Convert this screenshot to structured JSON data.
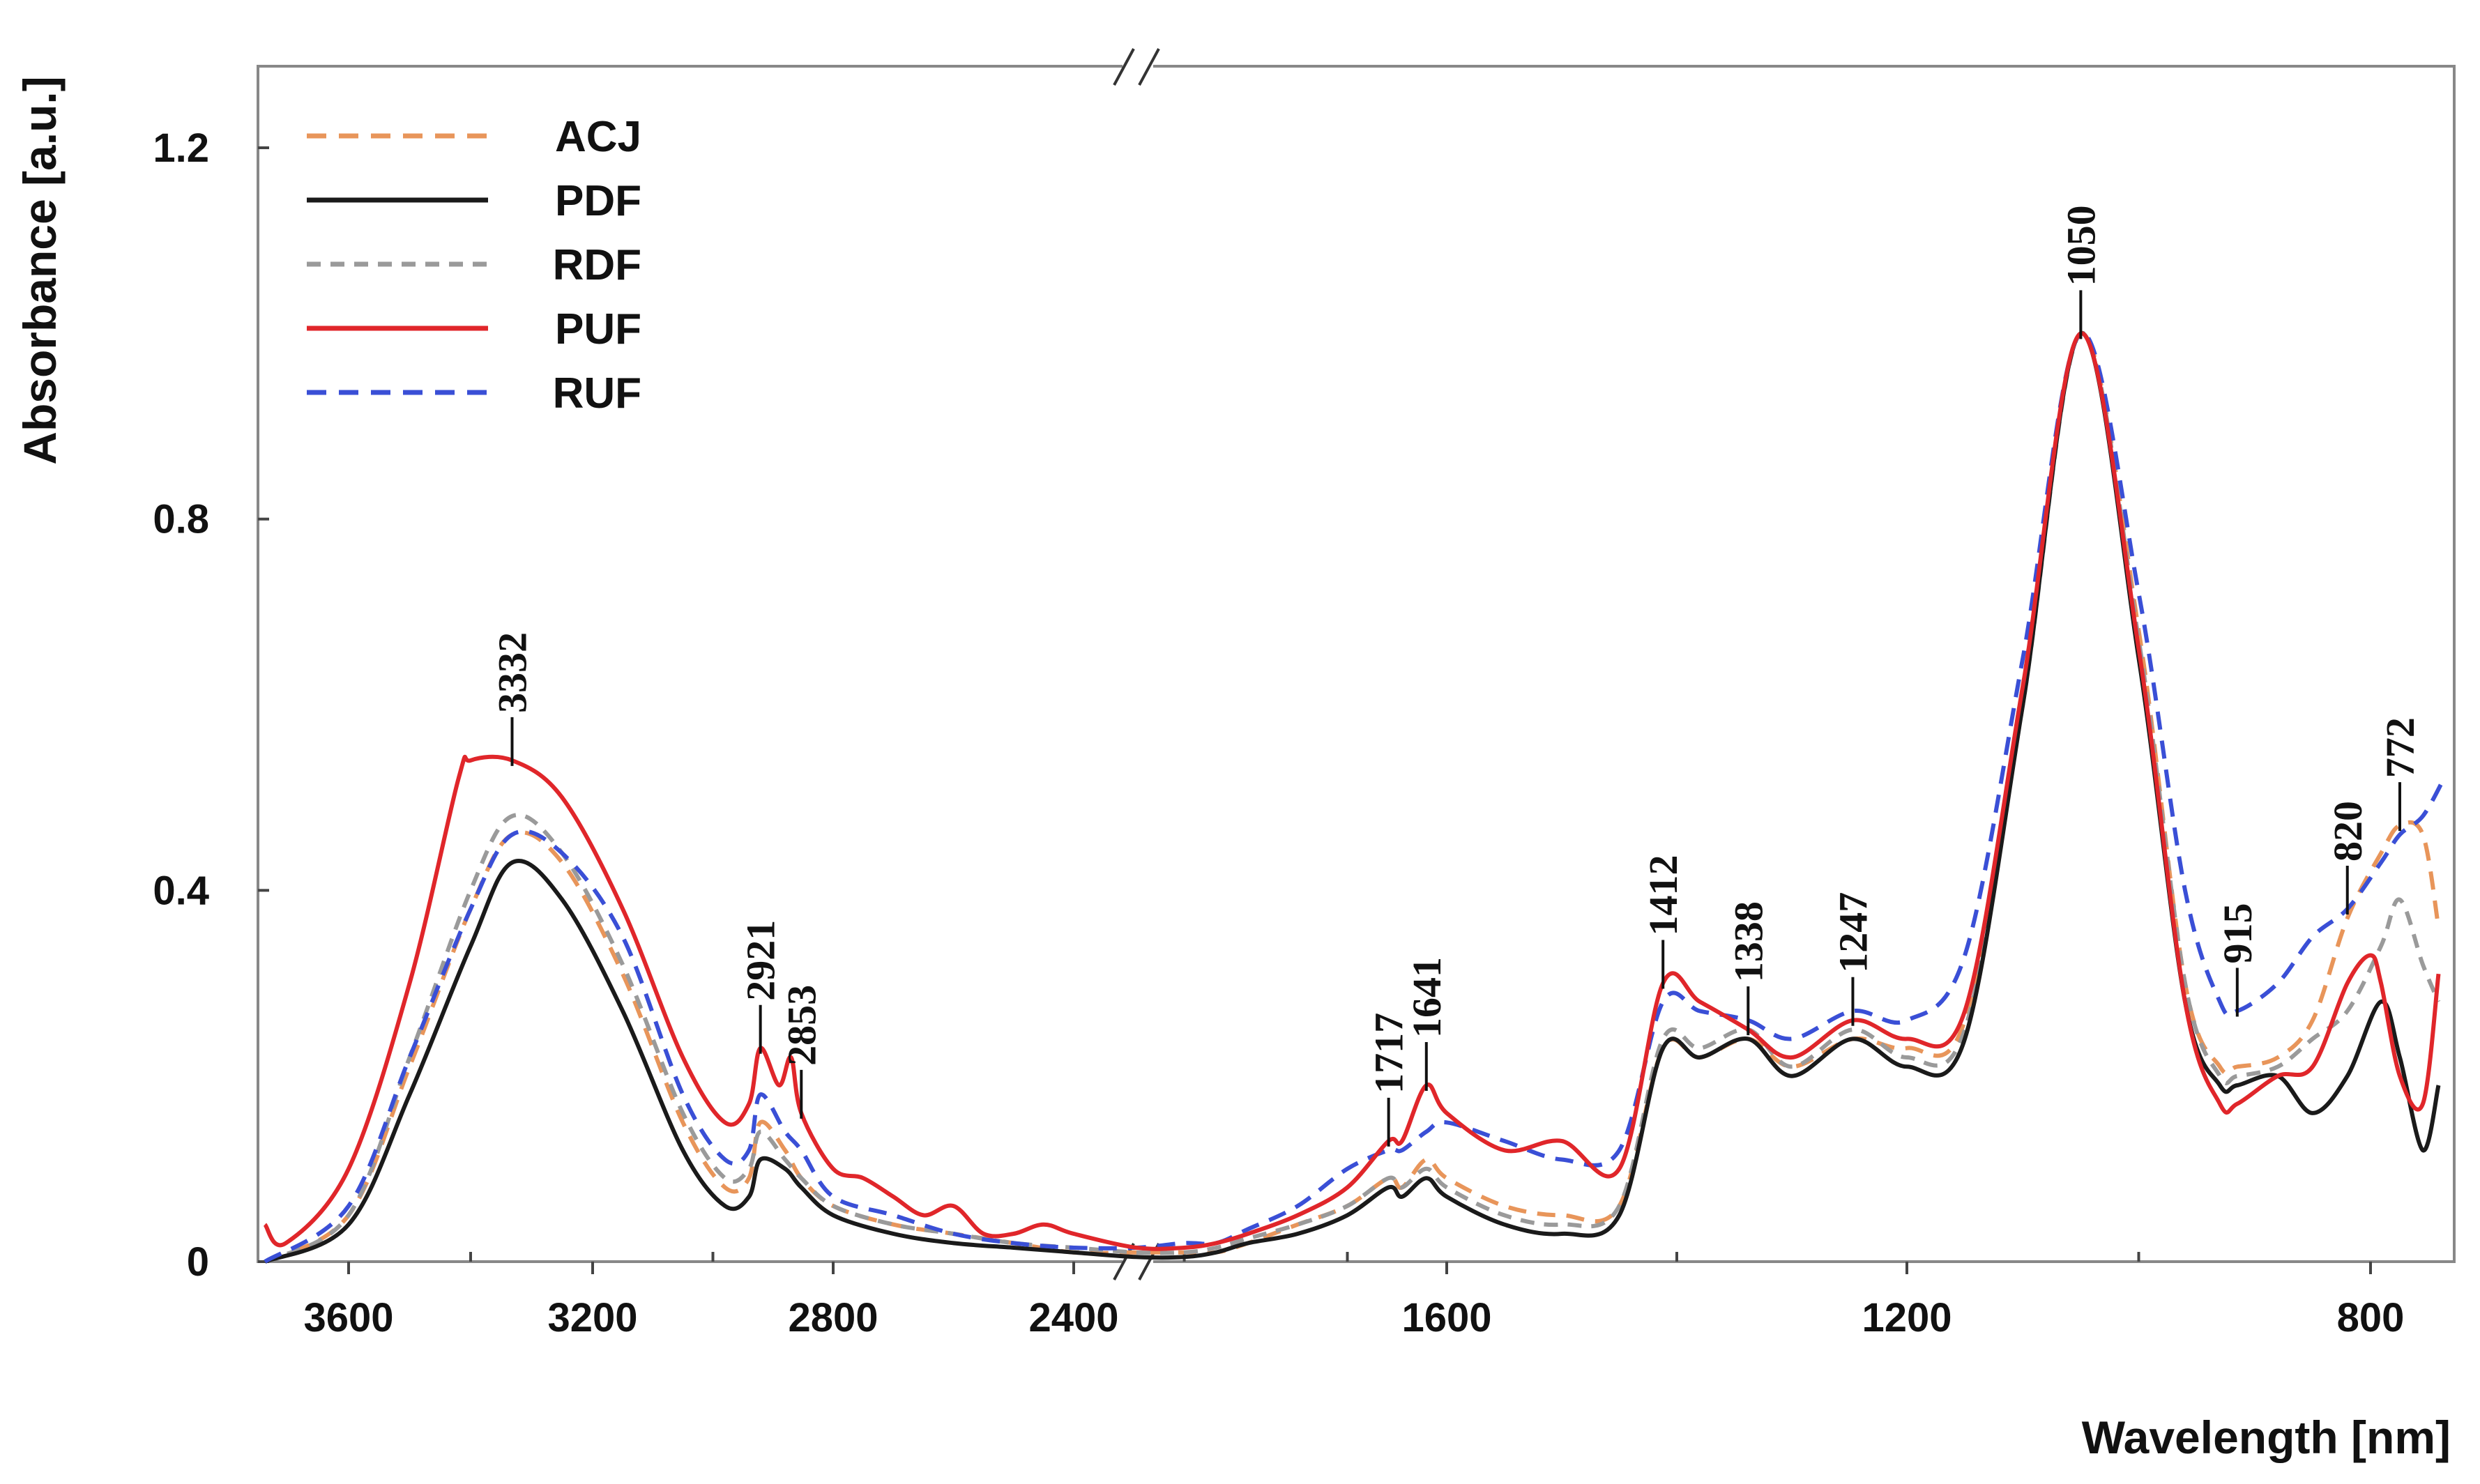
{
  "chart_data": {
    "type": "line",
    "title": "",
    "xlabel": "Wavelength [nm]",
    "ylabel": "Absorbance [a.u.]",
    "xlim": [
      3730,
      720
    ],
    "ylim": [
      0,
      1.3
    ],
    "x_axis_break_at": 2350,
    "x_ticks": [
      3600,
      3200,
      2800,
      2400,
      1600,
      1200,
      800
    ],
    "y_ticks": [
      0,
      0.4,
      0.8,
      1.2
    ],
    "x_tick_labels": [
      "3600",
      "3200",
      "2800",
      "2400",
      "1600",
      "1200",
      "800"
    ],
    "y_tick_labels": [
      "0",
      "0.4",
      "0.8",
      "1.2"
    ],
    "legend_position": "top-left",
    "series": [
      {
        "name": "ACJ",
        "color": "#e8955a",
        "style": "dashed",
        "points": [
          [
            3720,
            0.0
          ],
          [
            3600,
            0.05
          ],
          [
            3500,
            0.21
          ],
          [
            3400,
            0.38
          ],
          [
            3332,
            0.46
          ],
          [
            3250,
            0.43
          ],
          [
            3150,
            0.31
          ],
          [
            3050,
            0.15
          ],
          [
            2980,
            0.08
          ],
          [
            2940,
            0.09
          ],
          [
            2921,
            0.15
          ],
          [
            2880,
            0.12
          ],
          [
            2853,
            0.09
          ],
          [
            2800,
            0.06
          ],
          [
            2700,
            0.04
          ],
          [
            2600,
            0.03
          ],
          [
            2500,
            0.02
          ],
          [
            2400,
            0.01
          ],
          [
            2350,
            0.01
          ],
          [
            2200,
            0.01
          ],
          [
            2100,
            0.01
          ],
          [
            2000,
            0.02
          ],
          [
            1900,
            0.04
          ],
          [
            1800,
            0.06
          ],
          [
            1717,
            0.09
          ],
          [
            1690,
            0.08
          ],
          [
            1641,
            0.11
          ],
          [
            1600,
            0.09
          ],
          [
            1550,
            0.06
          ],
          [
            1500,
            0.05
          ],
          [
            1450,
            0.06
          ],
          [
            1412,
            0.23
          ],
          [
            1380,
            0.22
          ],
          [
            1338,
            0.24
          ],
          [
            1300,
            0.21
          ],
          [
            1247,
            0.24
          ],
          [
            1200,
            0.23
          ],
          [
            1150,
            0.26
          ],
          [
            1100,
            0.62
          ],
          [
            1050,
            1.0
          ],
          [
            1000,
            0.68
          ],
          [
            960,
            0.3
          ],
          [
            930,
            0.21
          ],
          [
            915,
            0.21
          ],
          [
            880,
            0.22
          ],
          [
            850,
            0.26
          ],
          [
            820,
            0.37
          ],
          [
            790,
            0.44
          ],
          [
            772,
            0.47
          ],
          [
            750,
            0.46
          ],
          [
            735,
            0.36
          ]
        ]
      },
      {
        "name": "PDF",
        "color": "#1a1a1a",
        "style": "solid",
        "points": [
          [
            3720,
            0.0
          ],
          [
            3600,
            0.04
          ],
          [
            3500,
            0.18
          ],
          [
            3400,
            0.34
          ],
          [
            3332,
            0.43
          ],
          [
            3250,
            0.39
          ],
          [
            3150,
            0.27
          ],
          [
            3050,
            0.12
          ],
          [
            2980,
            0.06
          ],
          [
            2940,
            0.07
          ],
          [
            2921,
            0.11
          ],
          [
            2880,
            0.1
          ],
          [
            2853,
            0.08
          ],
          [
            2800,
            0.05
          ],
          [
            2700,
            0.03
          ],
          [
            2600,
            0.02
          ],
          [
            2500,
            0.015
          ],
          [
            2400,
            0.01
          ],
          [
            2350,
            0.005
          ],
          [
            2200,
            0.005
          ],
          [
            2100,
            0.01
          ],
          [
            2000,
            0.02
          ],
          [
            1900,
            0.03
          ],
          [
            1800,
            0.05
          ],
          [
            1717,
            0.08
          ],
          [
            1690,
            0.07
          ],
          [
            1641,
            0.09
          ],
          [
            1600,
            0.07
          ],
          [
            1550,
            0.04
          ],
          [
            1500,
            0.03
          ],
          [
            1450,
            0.05
          ],
          [
            1412,
            0.23
          ],
          [
            1380,
            0.22
          ],
          [
            1338,
            0.24
          ],
          [
            1300,
            0.2
          ],
          [
            1247,
            0.24
          ],
          [
            1200,
            0.21
          ],
          [
            1150,
            0.24
          ],
          [
            1100,
            0.6
          ],
          [
            1050,
            1.0
          ],
          [
            1000,
            0.65
          ],
          [
            960,
            0.28
          ],
          [
            930,
            0.19
          ],
          [
            915,
            0.19
          ],
          [
            880,
            0.2
          ],
          [
            850,
            0.16
          ],
          [
            820,
            0.2
          ],
          [
            790,
            0.28
          ],
          [
            772,
            0.22
          ],
          [
            750,
            0.12
          ],
          [
            735,
            0.19
          ]
        ]
      },
      {
        "name": "RDF",
        "color": "#9a9a9a",
        "style": "dashed",
        "points": [
          [
            3720,
            0.0
          ],
          [
            3600,
            0.05
          ],
          [
            3500,
            0.22
          ],
          [
            3400,
            0.4
          ],
          [
            3332,
            0.48
          ],
          [
            3250,
            0.44
          ],
          [
            3150,
            0.32
          ],
          [
            3050,
            0.16
          ],
          [
            2980,
            0.09
          ],
          [
            2940,
            0.1
          ],
          [
            2921,
            0.14
          ],
          [
            2880,
            0.11
          ],
          [
            2853,
            0.09
          ],
          [
            2800,
            0.06
          ],
          [
            2700,
            0.04
          ],
          [
            2600,
            0.03
          ],
          [
            2500,
            0.02
          ],
          [
            2400,
            0.015
          ],
          [
            2350,
            0.01
          ],
          [
            2200,
            0.01
          ],
          [
            2100,
            0.015
          ],
          [
            2000,
            0.025
          ],
          [
            1900,
            0.04
          ],
          [
            1800,
            0.06
          ],
          [
            1717,
            0.09
          ],
          [
            1690,
            0.08
          ],
          [
            1641,
            0.1
          ],
          [
            1600,
            0.08
          ],
          [
            1550,
            0.05
          ],
          [
            1500,
            0.04
          ],
          [
            1450,
            0.06
          ],
          [
            1412,
            0.24
          ],
          [
            1380,
            0.23
          ],
          [
            1338,
            0.25
          ],
          [
            1300,
            0.21
          ],
          [
            1247,
            0.25
          ],
          [
            1200,
            0.22
          ],
          [
            1150,
            0.25
          ],
          [
            1100,
            0.6
          ],
          [
            1050,
            1.0
          ],
          [
            1000,
            0.67
          ],
          [
            960,
            0.3
          ],
          [
            930,
            0.2
          ],
          [
            915,
            0.2
          ],
          [
            880,
            0.21
          ],
          [
            850,
            0.24
          ],
          [
            820,
            0.27
          ],
          [
            790,
            0.34
          ],
          [
            772,
            0.39
          ],
          [
            750,
            0.32
          ],
          [
            735,
            0.28
          ]
        ]
      },
      {
        "name": "PUF",
        "color": "#e0262a",
        "style": "solid",
        "points": [
          [
            3720,
            0.04
          ],
          [
            3690,
            0.02
          ],
          [
            3600,
            0.1
          ],
          [
            3500,
            0.3
          ],
          [
            3420,
            0.52
          ],
          [
            3400,
            0.54
          ],
          [
            3332,
            0.54
          ],
          [
            3250,
            0.5
          ],
          [
            3150,
            0.38
          ],
          [
            3050,
            0.22
          ],
          [
            2980,
            0.15
          ],
          [
            2940,
            0.17
          ],
          [
            2921,
            0.23
          ],
          [
            2890,
            0.19
          ],
          [
            2870,
            0.22
          ],
          [
            2853,
            0.16
          ],
          [
            2800,
            0.1
          ],
          [
            2750,
            0.09
          ],
          [
            2700,
            0.07
          ],
          [
            2650,
            0.05
          ],
          [
            2600,
            0.06
          ],
          [
            2550,
            0.03
          ],
          [
            2500,
            0.03
          ],
          [
            2450,
            0.04
          ],
          [
            2400,
            0.03
          ],
          [
            2350,
            0.015
          ],
          [
            2200,
            0.015
          ],
          [
            2100,
            0.02
          ],
          [
            2000,
            0.03
          ],
          [
            1900,
            0.05
          ],
          [
            1800,
            0.08
          ],
          [
            1717,
            0.13
          ],
          [
            1690,
            0.13
          ],
          [
            1641,
            0.19
          ],
          [
            1600,
            0.16
          ],
          [
            1550,
            0.12
          ],
          [
            1500,
            0.13
          ],
          [
            1450,
            0.1
          ],
          [
            1412,
            0.3
          ],
          [
            1380,
            0.28
          ],
          [
            1338,
            0.25
          ],
          [
            1300,
            0.22
          ],
          [
            1247,
            0.26
          ],
          [
            1200,
            0.24
          ],
          [
            1150,
            0.27
          ],
          [
            1100,
            0.62
          ],
          [
            1050,
            1.0
          ],
          [
            1000,
            0.66
          ],
          [
            960,
            0.28
          ],
          [
            930,
            0.17
          ],
          [
            915,
            0.17
          ],
          [
            880,
            0.2
          ],
          [
            850,
            0.21
          ],
          [
            820,
            0.3
          ],
          [
            800,
            0.33
          ],
          [
            790,
            0.3
          ],
          [
            772,
            0.2
          ],
          [
            750,
            0.17
          ],
          [
            735,
            0.31
          ]
        ]
      },
      {
        "name": "RUF",
        "color": "#3a4fd6",
        "style": "dashed",
        "points": [
          [
            3720,
            0.0
          ],
          [
            3600,
            0.06
          ],
          [
            3500,
            0.22
          ],
          [
            3400,
            0.38
          ],
          [
            3332,
            0.46
          ],
          [
            3250,
            0.44
          ],
          [
            3150,
            0.35
          ],
          [
            3050,
            0.18
          ],
          [
            2980,
            0.11
          ],
          [
            2940,
            0.12
          ],
          [
            2921,
            0.18
          ],
          [
            2880,
            0.14
          ],
          [
            2853,
            0.12
          ],
          [
            2800,
            0.07
          ],
          [
            2700,
            0.05
          ],
          [
            2600,
            0.03
          ],
          [
            2500,
            0.02
          ],
          [
            2400,
            0.015
          ],
          [
            2350,
            0.015
          ],
          [
            2200,
            0.02
          ],
          [
            2100,
            0.02
          ],
          [
            2000,
            0.035
          ],
          [
            1900,
            0.06
          ],
          [
            1800,
            0.1
          ],
          [
            1717,
            0.12
          ],
          [
            1690,
            0.12
          ],
          [
            1641,
            0.14
          ],
          [
            1600,
            0.15
          ],
          [
            1550,
            0.13
          ],
          [
            1500,
            0.11
          ],
          [
            1450,
            0.12
          ],
          [
            1412,
            0.28
          ],
          [
            1380,
            0.27
          ],
          [
            1338,
            0.26
          ],
          [
            1300,
            0.24
          ],
          [
            1247,
            0.27
          ],
          [
            1200,
            0.26
          ],
          [
            1150,
            0.33
          ],
          [
            1100,
            0.65
          ],
          [
            1050,
            1.0
          ],
          [
            1000,
            0.72
          ],
          [
            960,
            0.4
          ],
          [
            930,
            0.28
          ],
          [
            915,
            0.27
          ],
          [
            880,
            0.3
          ],
          [
            850,
            0.35
          ],
          [
            820,
            0.38
          ],
          [
            790,
            0.43
          ],
          [
            772,
            0.46
          ],
          [
            750,
            0.48
          ],
          [
            730,
            0.52
          ]
        ]
      }
    ],
    "peak_annotations": [
      {
        "label": "3332",
        "x": 3332,
        "y": 0.54
      },
      {
        "label": "2921",
        "x": 2921,
        "y": 0.23
      },
      {
        "label": "2853",
        "x": 2853,
        "y": 0.16
      },
      {
        "label": "1717",
        "x": 1717,
        "y": 0.13
      },
      {
        "label": "1641",
        "x": 1641,
        "y": 0.19
      },
      {
        "label": "1412",
        "x": 1412,
        "y": 0.3
      },
      {
        "label": "1338",
        "x": 1338,
        "y": 0.25
      },
      {
        "label": "1247",
        "x": 1247,
        "y": 0.26
      },
      {
        "label": "1050",
        "x": 1050,
        "y": 1.0
      },
      {
        "label": "915",
        "x": 915,
        "y": 0.27
      },
      {
        "label": "820",
        "x": 820,
        "y": 0.38
      },
      {
        "label": "772",
        "x": 772,
        "y": 0.47
      }
    ]
  }
}
